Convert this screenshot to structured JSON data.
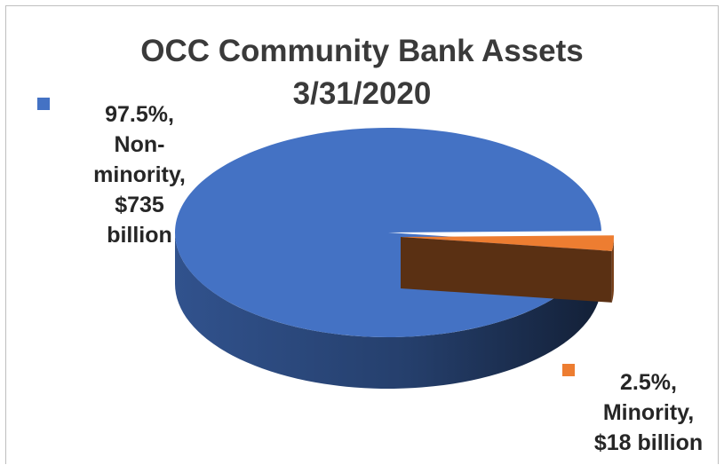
{
  "chart_data": {
    "type": "pie",
    "title_lines": [
      "OCC Community Bank Assets",
      "3/31/2020"
    ],
    "slices": [
      {
        "label_lines": [
          "97.5%,",
          "Non-",
          "minority,",
          "$735",
          "billion"
        ],
        "percent": 97.5,
        "value": 735,
        "color": "#4472c4"
      },
      {
        "label_lines": [
          "2.5%,",
          "Minority,",
          "$18 billion"
        ],
        "percent": 2.5,
        "value": 18,
        "color": "#ed7d31"
      }
    ],
    "style_3d": true
  }
}
